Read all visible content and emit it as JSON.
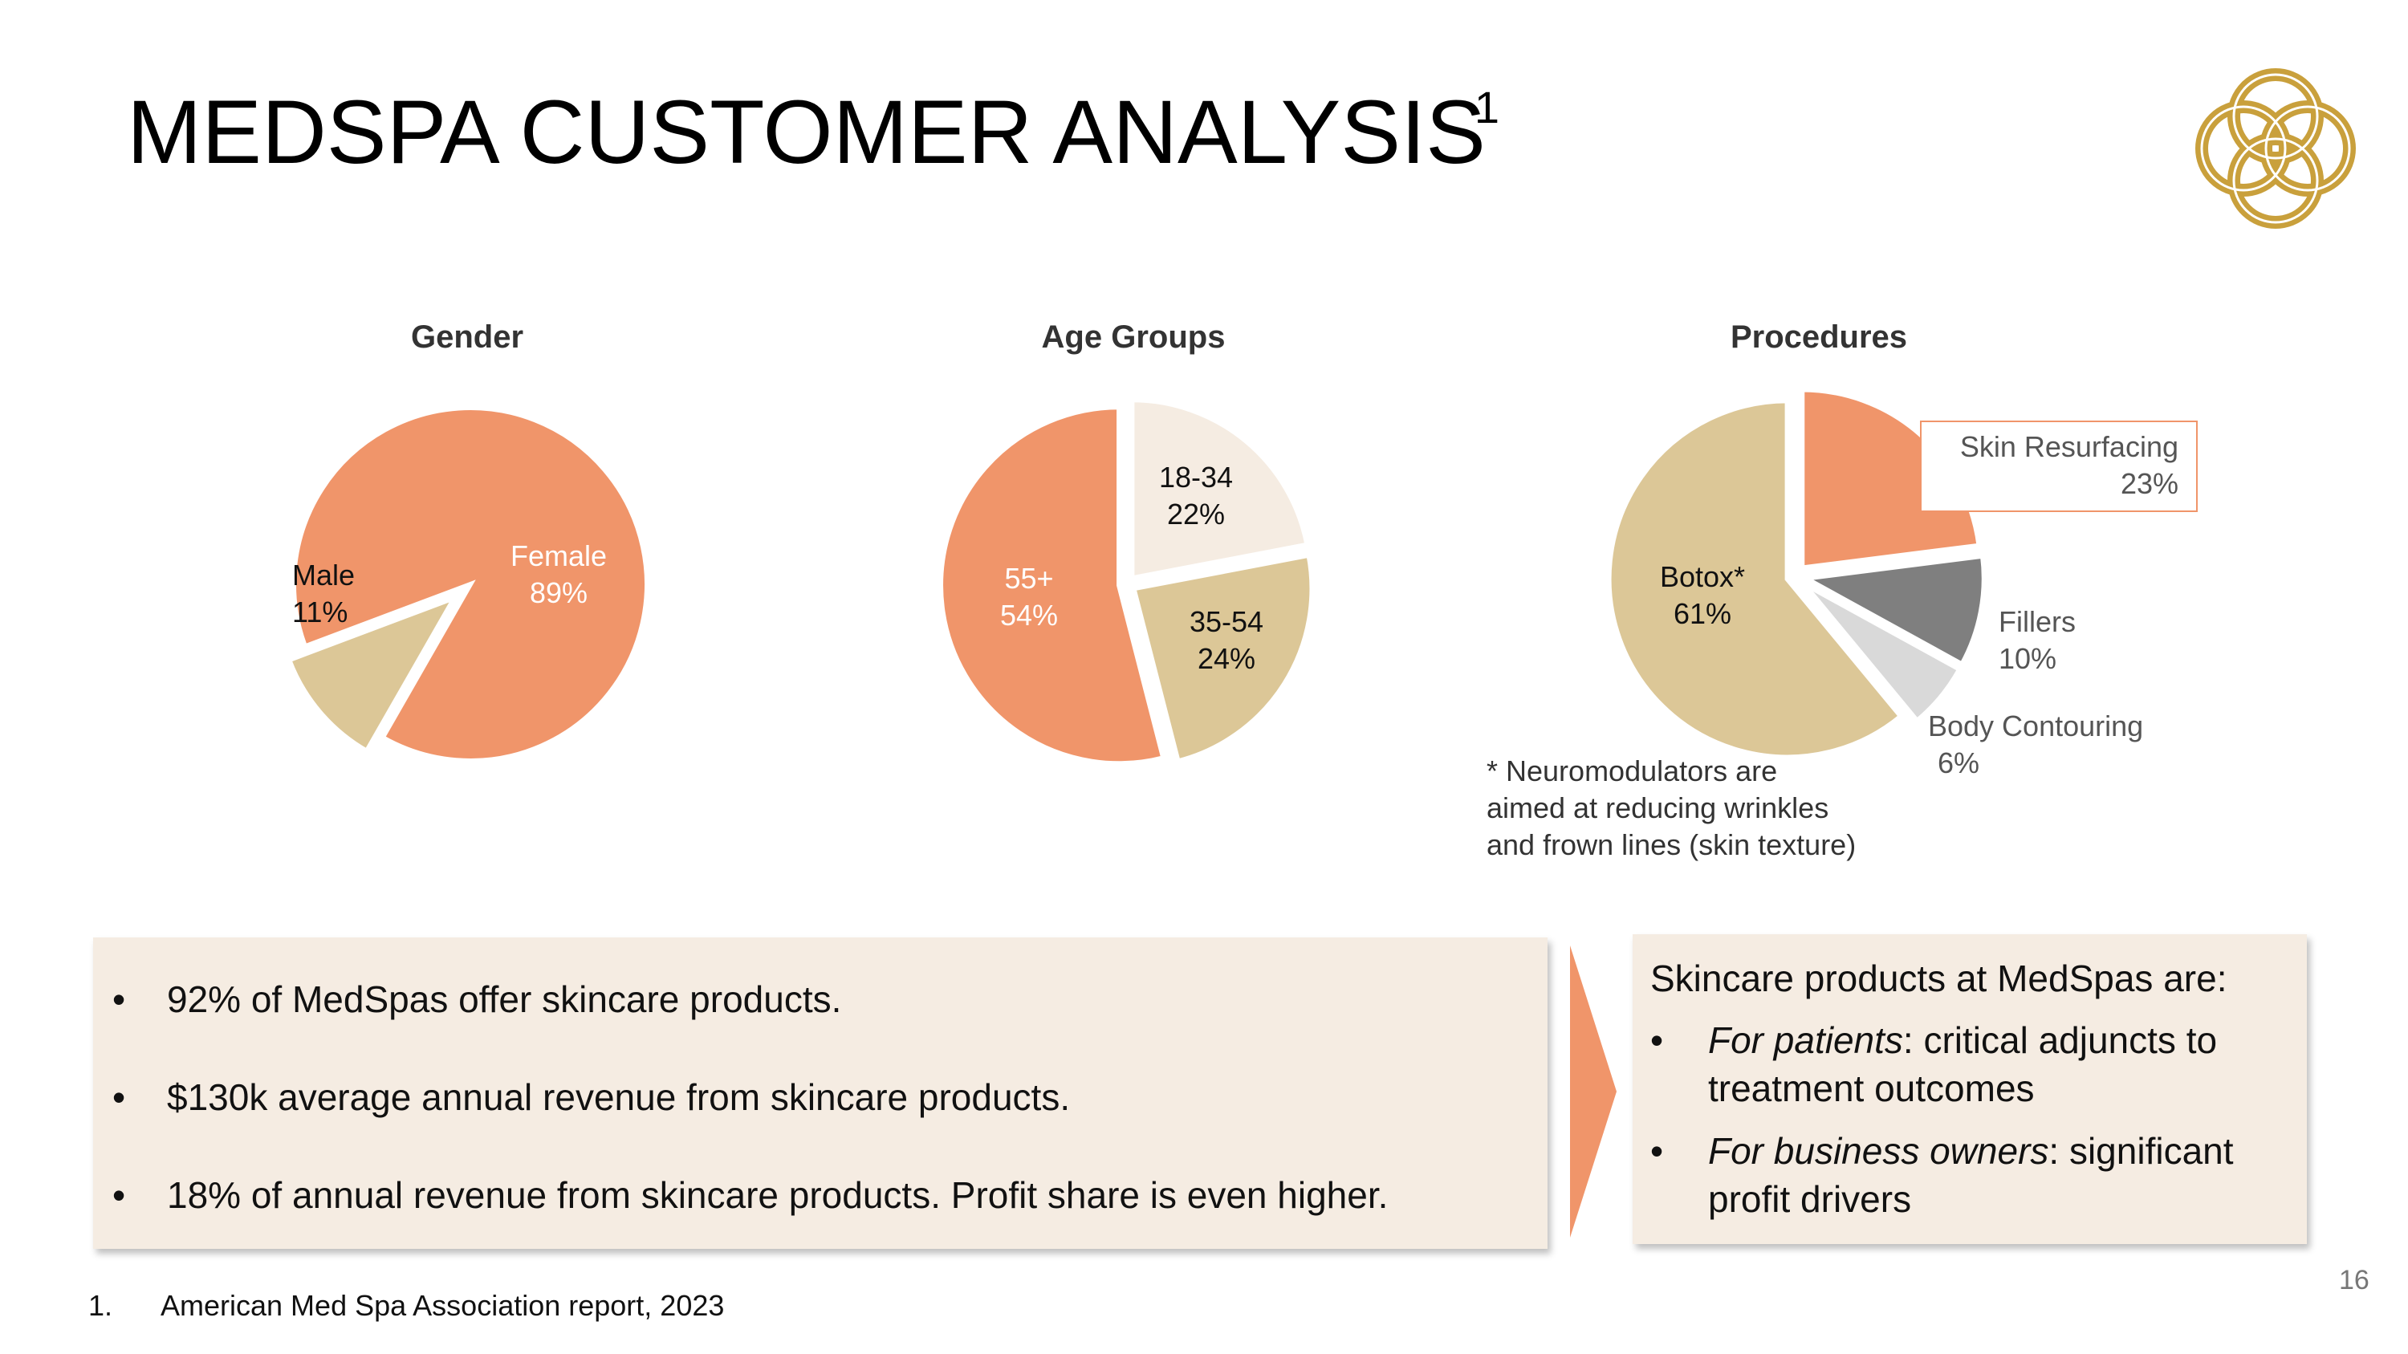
{
  "page": {
    "title": "MEDSPA CUSTOMER ANALYSIS",
    "title_superscript": "1",
    "page_number": "16",
    "footnote_number": "1.",
    "footnote_text": "American Med Spa Association report, 2023",
    "logo_icon": "gold-knot-logo-icon"
  },
  "colors": {
    "orange": "#f0956a",
    "tan": "#dcc797",
    "cream": "#f5ece2",
    "grey_dark": "#7f7f7f",
    "grey_light": "#d9d9d9",
    "gold": "#c9a03c"
  },
  "chart_data": [
    {
      "type": "pie",
      "title": "Gender",
      "slices": [
        {
          "label": "Female",
          "value": 89,
          "value_label": "89%",
          "color": "#f0956a"
        },
        {
          "label": "Male",
          "value": 11,
          "value_label": "11%",
          "color": "#dcc797",
          "exploded": true
        }
      ]
    },
    {
      "type": "pie",
      "title": "Age Groups",
      "slices": [
        {
          "label": "18-34",
          "value": 22,
          "value_label": "22%",
          "color": "#f5ece2"
        },
        {
          "label": "35-54",
          "value": 24,
          "value_label": "24%",
          "color": "#dcc797"
        },
        {
          "label": "55+",
          "value": 54,
          "value_label": "54%",
          "color": "#f0956a"
        }
      ]
    },
    {
      "type": "pie",
      "title": "Procedures",
      "slices": [
        {
          "label": "Skin Resurfacing",
          "value": 23,
          "value_label": "23%",
          "color": "#f0956a"
        },
        {
          "label": "Fillers",
          "value": 10,
          "value_label": "10%",
          "color": "#7f7f7f"
        },
        {
          "label": "Body Contouring",
          "value": 6,
          "value_label": "6%",
          "color": "#d9d9d9"
        },
        {
          "label": "Botox*",
          "value": 61,
          "value_label": "61%",
          "color": "#dcc797"
        }
      ],
      "annotation": "* Neuromodulators are aimed at reducing wrinkles and frown lines (skin texture)",
      "annotation_lines": [
        "* Neuromodulators are",
        "aimed at reducing wrinkles",
        "and frown lines (skin texture)"
      ]
    }
  ],
  "left_panel": {
    "bullets": [
      "92% of MedSpas offer skincare products.",
      "$130k average annual revenue from skincare products.",
      "18% of annual revenue from skincare products. Profit share is even higher."
    ]
  },
  "right_panel": {
    "heading": "Skincare products at MedSpas are:",
    "bullets": [
      {
        "lead": "For patients",
        "rest": ": critical adjuncts to treatment outcomes"
      },
      {
        "lead": "For business owners",
        "rest": ": significant profit drivers"
      }
    ]
  },
  "bullet_char": "•"
}
